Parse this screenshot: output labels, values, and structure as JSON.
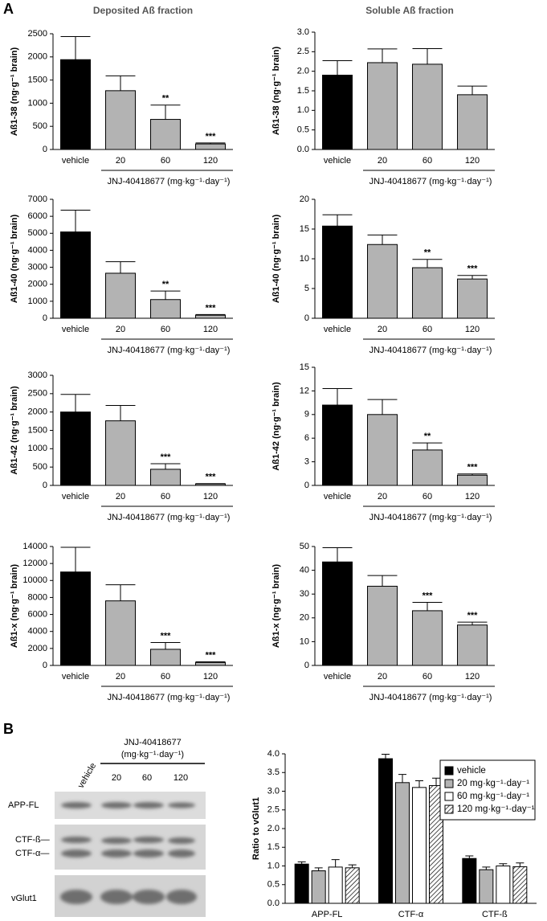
{
  "panel_labels": [
    "A",
    "B"
  ],
  "column_titles": [
    "Deposited Aß fraction",
    "Soluble Aß fraction"
  ],
  "blot": {
    "treatment": "JNJ-40418677",
    "unit": "(mg·kg⁻¹·day⁻¹)",
    "lanes": [
      "vehicle",
      "20",
      "60",
      "120"
    ],
    "rows": [
      "APP-FL",
      "CTF-ß—",
      "CTF-α—",
      "vGlut1"
    ]
  },
  "chart_data": [
    {
      "type": "bar",
      "ylabel": "Aß1-38 (ng·g⁻¹ brain)",
      "xlabel": "JNJ-40418677 (mg·kg⁻¹·day⁻¹)",
      "categories": [
        "vehicle",
        "20",
        "60",
        "120"
      ],
      "values": [
        1940,
        1270,
        650,
        120
      ],
      "errors": [
        500,
        320,
        310,
        20
      ],
      "significance": [
        null,
        null,
        "**",
        "***"
      ],
      "colors": [
        "#000000",
        "#b3b3b3",
        "#b3b3b3",
        "#b3b3b3"
      ],
      "ylim": [
        0,
        2500
      ],
      "yticks": [
        0,
        500,
        1000,
        1500,
        2000,
        2500
      ]
    },
    {
      "type": "bar",
      "ylabel": "Aß1-38 (ng·g⁻¹ brain)",
      "xlabel": "JNJ-40418677 (mg·kg⁻¹·day⁻¹)",
      "categories": [
        "vehicle",
        "20",
        "60",
        "120"
      ],
      "values": [
        1.9,
        2.22,
        2.18,
        1.4
      ],
      "errors": [
        0.37,
        0.35,
        0.4,
        0.22
      ],
      "significance": [
        null,
        null,
        null,
        null
      ],
      "colors": [
        "#000000",
        "#b3b3b3",
        "#b3b3b3",
        "#b3b3b3"
      ],
      "ylim": [
        0,
        3
      ],
      "yticks": [
        {
          "value": 0,
          "label": "0.0"
        },
        0.5,
        {
          "value": 1,
          "label": "1.0"
        },
        1.5,
        {
          "value": 2,
          "label": "2.0"
        },
        2.5,
        {
          "value": 3,
          "label": "3.0"
        }
      ]
    },
    {
      "type": "bar",
      "ylabel": "Aß1-40 (ng·g⁻¹ brain)",
      "xlabel": "JNJ-40418677 (mg·kg⁻¹·day⁻¹)",
      "categories": [
        "vehicle",
        "20",
        "60",
        "120"
      ],
      "values": [
        5080,
        2650,
        1100,
        180
      ],
      "errors": [
        1280,
        680,
        500,
        40
      ],
      "significance": [
        null,
        null,
        "**",
        "***"
      ],
      "colors": [
        "#000000",
        "#b3b3b3",
        "#b3b3b3",
        "#b3b3b3"
      ],
      "ylim": [
        0,
        7000
      ],
      "yticks": [
        0,
        1000,
        2000,
        3000,
        4000,
        5000,
        6000,
        7000
      ]
    },
    {
      "type": "bar",
      "ylabel": "Aß1-40 (ng·g⁻¹ brain)",
      "xlabel": "JNJ-40418677 (mg·kg⁻¹·day⁻¹)",
      "categories": [
        "vehicle",
        "20",
        "60",
        "120"
      ],
      "values": [
        15.5,
        12.4,
        8.5,
        6.6
      ],
      "errors": [
        1.9,
        1.6,
        1.4,
        0.6
      ],
      "significance": [
        null,
        null,
        "**",
        "***"
      ],
      "colors": [
        "#000000",
        "#b3b3b3",
        "#b3b3b3",
        "#b3b3b3"
      ],
      "ylim": [
        0,
        20
      ],
      "yticks": [
        0,
        5,
        10,
        15,
        20
      ]
    },
    {
      "type": "bar",
      "ylabel": "Aß1-42 (ng·g⁻¹ brain)",
      "xlabel": "JNJ-40418677 (mg·kg⁻¹·day⁻¹)",
      "categories": [
        "vehicle",
        "20",
        "60",
        "120"
      ],
      "values": [
        2000,
        1760,
        440,
        40
      ],
      "errors": [
        480,
        420,
        150,
        10
      ],
      "significance": [
        null,
        null,
        "***",
        "***"
      ],
      "colors": [
        "#000000",
        "#b3b3b3",
        "#b3b3b3",
        "#b3b3b3"
      ],
      "ylim": [
        0,
        3000
      ],
      "yticks": [
        0,
        500,
        1000,
        1500,
        2000,
        2500,
        3000
      ]
    },
    {
      "type": "bar",
      "ylabel": "Aß1-42 (ng·g⁻¹ brain)",
      "xlabel": "JNJ-40418677 (mg·kg⁻¹·day⁻¹)",
      "categories": [
        "vehicle",
        "20",
        "60",
        "120"
      ],
      "values": [
        10.2,
        9.0,
        4.5,
        1.3
      ],
      "errors": [
        2.1,
        1.9,
        0.9,
        0.15
      ],
      "significance": [
        null,
        null,
        "**",
        "***"
      ],
      "colors": [
        "#000000",
        "#b3b3b3",
        "#b3b3b3",
        "#b3b3b3"
      ],
      "ylim": [
        0,
        15
      ],
      "yticks": [
        0,
        3,
        6,
        9,
        12,
        15
      ]
    },
    {
      "type": "bar",
      "ylabel": "Aß1-x (ng·g⁻¹ brain)",
      "xlabel": "JNJ-40418677 (mg·kg⁻¹·day⁻¹)",
      "categories": [
        "vehicle",
        "20",
        "60",
        "120"
      ],
      "values": [
        11000,
        7600,
        1900,
        350
      ],
      "errors": [
        2900,
        1900,
        800,
        80
      ],
      "significance": [
        null,
        null,
        "***",
        "***"
      ],
      "colors": [
        "#000000",
        "#b3b3b3",
        "#b3b3b3",
        "#b3b3b3"
      ],
      "ylim": [
        0,
        14000
      ],
      "yticks": [
        0,
        2000,
        4000,
        6000,
        8000,
        10000,
        12000,
        14000
      ]
    },
    {
      "type": "bar",
      "ylabel": "Aß1-x (ng·g⁻¹ brain)",
      "xlabel": "JNJ-40418677 (mg·kg⁻¹·day⁻¹)",
      "categories": [
        "vehicle",
        "20",
        "60",
        "120"
      ],
      "values": [
        43.5,
        33.3,
        23,
        17
      ],
      "errors": [
        6,
        4.5,
        3.5,
        1.2
      ],
      "significance": [
        null,
        null,
        "***",
        "***"
      ],
      "colors": [
        "#000000",
        "#b3b3b3",
        "#b3b3b3",
        "#b3b3b3"
      ],
      "ylim": [
        0,
        50
      ],
      "yticks": [
        0,
        10,
        20,
        30,
        40,
        50
      ]
    },
    {
      "type": "grouped_bar",
      "ylabel": "Ratio to vGlut1",
      "categories": [
        "APP-FL",
        "CTF-α",
        "CTF-ß"
      ],
      "legend": "top-right",
      "series": [
        {
          "name": "vehicle",
          "color": "#000000",
          "values": [
            1.05,
            3.87,
            1.2
          ],
          "errors": [
            0.06,
            0.12,
            0.07
          ]
        },
        {
          "name": "20 mg·kg⁻¹·day⁻¹",
          "color": "#b3b3b3",
          "values": [
            0.87,
            3.23,
            0.9
          ],
          "errors": [
            0.08,
            0.22,
            0.07
          ]
        },
        {
          "name": "60 mg·kg⁻¹·day⁻¹",
          "color": "#ffffff",
          "values": [
            0.97,
            3.1,
            1.0
          ],
          "errors": [
            0.2,
            0.18,
            0.06
          ]
        },
        {
          "name": "120 mg·kg⁻¹·day⁻¹",
          "color": "#ffffff",
          "hatch": true,
          "values": [
            0.95,
            3.15,
            0.98
          ],
          "errors": [
            0.08,
            0.2,
            0.1
          ]
        }
      ],
      "ylim": [
        0,
        4
      ],
      "yticks": [
        {
          "value": 0,
          "label": "0.0"
        },
        0.5,
        {
          "value": 1,
          "label": "1.0"
        },
        1.5,
        {
          "value": 2,
          "label": "2.0"
        },
        2.5,
        {
          "value": 3,
          "label": "3.0"
        },
        3.5,
        {
          "value": 4,
          "label": "4.0"
        }
      ]
    }
  ]
}
